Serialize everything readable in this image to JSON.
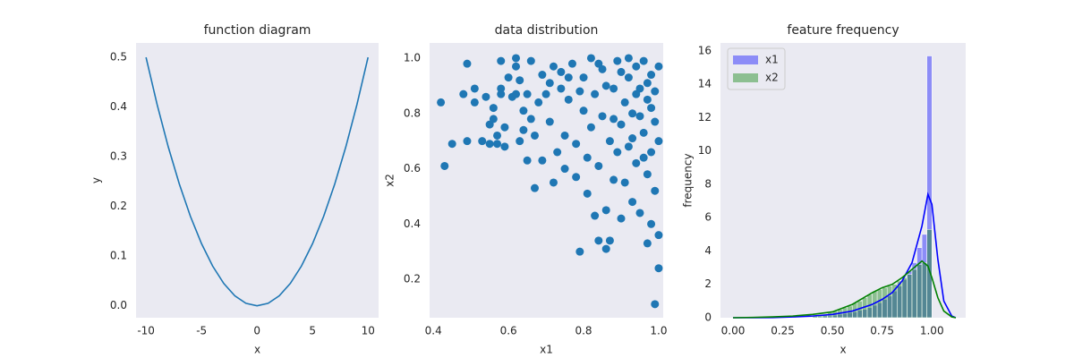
{
  "chart_data": [
    {
      "type": "line",
      "title": "function diagram",
      "xlabel": "x",
      "ylabel": "y",
      "color": "#1f77b4",
      "x": [
        -10,
        -9,
        -8,
        -7,
        -6,
        -5,
        -4,
        -3,
        -2,
        -1,
        0,
        1,
        2,
        3,
        4,
        5,
        6,
        7,
        8,
        9,
        10
      ],
      "values": [
        0.5,
        0.405,
        0.32,
        0.245,
        0.18,
        0.125,
        0.08,
        0.045,
        0.02,
        0.005,
        0,
        0.005,
        0.02,
        0.045,
        0.08,
        0.125,
        0.18,
        0.245,
        0.32,
        0.405,
        0.5
      ],
      "xlim": [
        -10.9,
        10.95
      ],
      "xticks": [
        -10,
        -5,
        0,
        5,
        10
      ],
      "ylim": [
        -0.024,
        0.529
      ],
      "yticks": [
        {
          "value": 0,
          "label": "0.0"
        },
        0.1,
        0.2,
        0.3,
        0.4,
        0.5
      ],
      "grid": false
    },
    {
      "type": "scatter",
      "title": "data distribution",
      "xlabel": "x1",
      "ylabel": "x2",
      "color": "#1f77b4",
      "x": [
        0.42,
        0.43,
        0.45,
        0.48,
        0.49,
        0.49,
        0.51,
        0.51,
        0.53,
        0.54,
        0.55,
        0.55,
        0.56,
        0.56,
        0.57,
        0.57,
        0.58,
        0.58,
        0.58,
        0.59,
        0.59,
        0.6,
        0.61,
        0.62,
        0.62,
        0.62,
        0.63,
        0.63,
        0.64,
        0.64,
        0.65,
        0.65,
        0.66,
        0.66,
        0.67,
        0.67,
        0.68,
        0.69,
        0.69,
        0.7,
        0.71,
        0.72,
        0.72,
        0.73,
        0.74,
        0.75,
        0.75,
        0.76,
        0.77,
        0.78,
        0.78,
        0.79,
        0.8,
        0.8,
        0.81,
        0.81,
        0.82,
        0.82,
        0.83,
        0.83,
        0.84,
        0.84,
        0.85,
        0.85,
        0.86,
        0.86,
        0.87,
        0.87,
        0.88,
        0.88,
        0.89,
        0.89,
        0.9,
        0.9,
        0.91,
        0.91,
        0.92,
        0.92,
        0.93,
        0.93,
        0.94,
        0.94,
        0.95,
        0.95,
        0.96,
        0.96,
        0.97,
        0.97,
        0.97,
        0.98,
        0.98,
        0.98,
        0.99,
        0.99,
        0.99,
        1.0,
        1.0,
        1.0,
        1.0,
        0.99,
        0.98,
        0.97,
        0.96,
        0.95,
        0.94,
        0.93,
        0.92,
        0.9,
        0.88,
        0.86,
        0.84,
        0.76,
        0.79,
        0.74,
        0.71
      ],
      "values": [
        0.84,
        0.61,
        0.69,
        0.87,
        0.7,
        0.98,
        0.89,
        0.84,
        0.7,
        0.86,
        0.76,
        0.69,
        0.78,
        0.82,
        0.72,
        0.69,
        0.89,
        0.99,
        0.87,
        0.75,
        0.68,
        0.93,
        0.86,
        0.97,
        0.87,
        1.0,
        0.7,
        0.92,
        0.74,
        0.81,
        0.63,
        0.87,
        0.78,
        0.99,
        0.53,
        0.72,
        0.84,
        0.94,
        0.63,
        0.87,
        0.77,
        0.55,
        0.97,
        0.66,
        0.89,
        0.6,
        0.72,
        0.85,
        0.98,
        0.57,
        0.69,
        0.3,
        0.81,
        0.93,
        0.64,
        0.51,
        0.75,
        1.0,
        0.87,
        0.43,
        0.61,
        0.34,
        0.96,
        0.79,
        0.31,
        0.45,
        0.7,
        0.34,
        0.89,
        0.56,
        0.66,
        0.99,
        0.76,
        0.42,
        0.84,
        0.55,
        0.93,
        0.68,
        0.48,
        0.8,
        0.97,
        0.62,
        0.89,
        0.44,
        0.73,
        0.99,
        0.33,
        0.85,
        0.58,
        0.94,
        0.66,
        0.4,
        0.77,
        0.11,
        0.88,
        0.24,
        0.36,
        0.97,
        0.7,
        0.52,
        0.82,
        0.91,
        0.64,
        0.79,
        0.87,
        0.71,
        1.0,
        0.95,
        0.78,
        0.9,
        0.98,
        0.93,
        0.88,
        0.95,
        0.91
      ],
      "xlim": [
        0.39,
        1.012
      ],
      "xticks": [
        0.4,
        0.6,
        0.8,
        {
          "value": 1,
          "label": "1.0"
        }
      ],
      "ylim": [
        0.061,
        1.055
      ],
      "yticks": [
        0.2,
        0.4,
        0.6,
        0.8,
        {
          "value": 1,
          "label": "1.0"
        }
      ],
      "grid": false
    },
    {
      "type": "histogram",
      "title": "feature frequency",
      "xlabel": "x",
      "ylabel": "frequency",
      "legend": "upper left",
      "bins": [
        0.4,
        0.425,
        0.45,
        0.475,
        0.5,
        0.525,
        0.55,
        0.575,
        0.6,
        0.625,
        0.65,
        0.675,
        0.7,
        0.725,
        0.75,
        0.775,
        0.8,
        0.825,
        0.85,
        0.875,
        0.9,
        0.925,
        0.95,
        0.975,
        1.0
      ],
      "series": [
        {
          "name": "x1",
          "color": "#0000ff",
          "values": [
            0.05,
            0.05,
            0.1,
            0.1,
            0.15,
            0.2,
            0.25,
            0.3,
            0.35,
            0.45,
            0.5,
            0.6,
            0.75,
            0.9,
            1.1,
            1.3,
            1.6,
            1.9,
            2.3,
            2.8,
            3.3,
            4.2,
            5.0,
            15.7
          ]
        },
        {
          "name": "x2",
          "color": "#008000",
          "values": [
            0.1,
            0.15,
            0.2,
            0.3,
            0.4,
            0.5,
            0.6,
            0.7,
            0.9,
            1.0,
            1.2,
            1.4,
            1.6,
            1.7,
            1.8,
            1.9,
            2.0,
            2.2,
            2.4,
            2.6,
            2.9,
            3.2,
            3.3,
            5.3
          ]
        }
      ],
      "kde": [
        {
          "color": "#0000ff",
          "x": [
            0,
            0.1,
            0.2,
            0.3,
            0.4,
            0.5,
            0.6,
            0.7,
            0.75,
            0.8,
            0.85,
            0.9,
            0.95,
            0.98,
            1.0,
            1.03,
            1.06,
            1.1,
            1.12
          ],
          "values": [
            0,
            0,
            0.01,
            0.05,
            0.1,
            0.2,
            0.4,
            0.8,
            1.1,
            1.5,
            2.2,
            3.3,
            5.5,
            7.4,
            6.8,
            3.5,
            1.0,
            0.1,
            0
          ]
        },
        {
          "color": "#008000",
          "x": [
            0,
            0.1,
            0.2,
            0.3,
            0.4,
            0.5,
            0.6,
            0.7,
            0.75,
            0.8,
            0.85,
            0.9,
            0.95,
            0.98,
            1.0,
            1.03,
            1.06,
            1.1,
            1.12
          ],
          "values": [
            0,
            0.02,
            0.05,
            0.1,
            0.2,
            0.35,
            0.8,
            1.5,
            1.8,
            2.0,
            2.4,
            2.9,
            3.4,
            3.1,
            2.4,
            1.2,
            0.4,
            0.05,
            0
          ]
        }
      ],
      "xlim": [
        -0.063,
        1.17
      ],
      "xticks": [
        {
          "value": 0,
          "label": "0.00"
        },
        {
          "value": 0.25,
          "label": "0.25"
        },
        {
          "value": 0.5,
          "label": "0.50"
        },
        {
          "value": 0.75,
          "label": "0.75"
        },
        {
          "value": 1,
          "label": "1.00"
        }
      ],
      "ylim": [
        0,
        16.48
      ],
      "yticks": [
        0,
        2,
        4,
        6,
        8,
        10,
        12,
        14,
        16
      ],
      "grid": false
    }
  ]
}
